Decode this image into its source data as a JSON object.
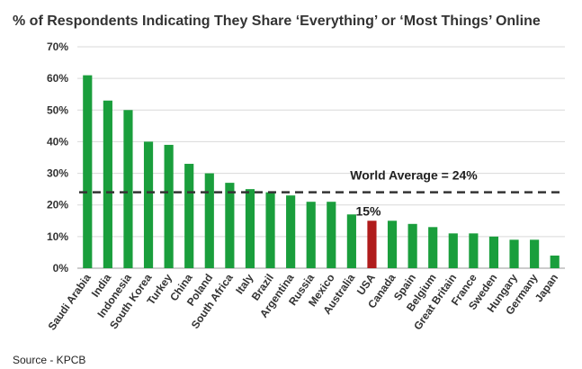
{
  "chart_data": {
    "type": "bar",
    "title": "% of Respondents Indicating They Share ‘Everything’ or ‘Most Things’ Online",
    "xlabel": "",
    "ylabel": "",
    "ylim": [
      0,
      70
    ],
    "yticks": [
      0,
      10,
      20,
      30,
      40,
      50,
      60,
      70
    ],
    "ytick_labels": [
      "0%",
      "10%",
      "20%",
      "30%",
      "40%",
      "50%",
      "60%",
      "70%"
    ],
    "grid": true,
    "categories": [
      "Saudi Arabia",
      "India",
      "Indonesia",
      "South Korea",
      "Turkey",
      "China",
      "Poland",
      "South Africa",
      "Italy",
      "Brazil",
      "Argentina",
      "Russia",
      "Mexico",
      "Australia",
      "USA",
      "Canada",
      "Spain",
      "Belgium",
      "Great Britain",
      "France",
      "Sweden",
      "Hungary",
      "Germany",
      "Japan"
    ],
    "values": [
      61,
      53,
      50,
      40,
      39,
      33,
      30,
      27,
      25,
      24,
      23,
      21,
      21,
      17,
      15,
      15,
      14,
      13,
      11,
      11,
      10,
      9,
      9,
      4
    ],
    "bar_color": "#1a9e3c",
    "highlight": {
      "category": "USA",
      "color": "#b01c1c",
      "label": "15%"
    },
    "reference_line": {
      "value": 24,
      "label": "World Average = 24%",
      "color": "#333333",
      "style": "dashed"
    },
    "source": "Source - KPCB"
  }
}
